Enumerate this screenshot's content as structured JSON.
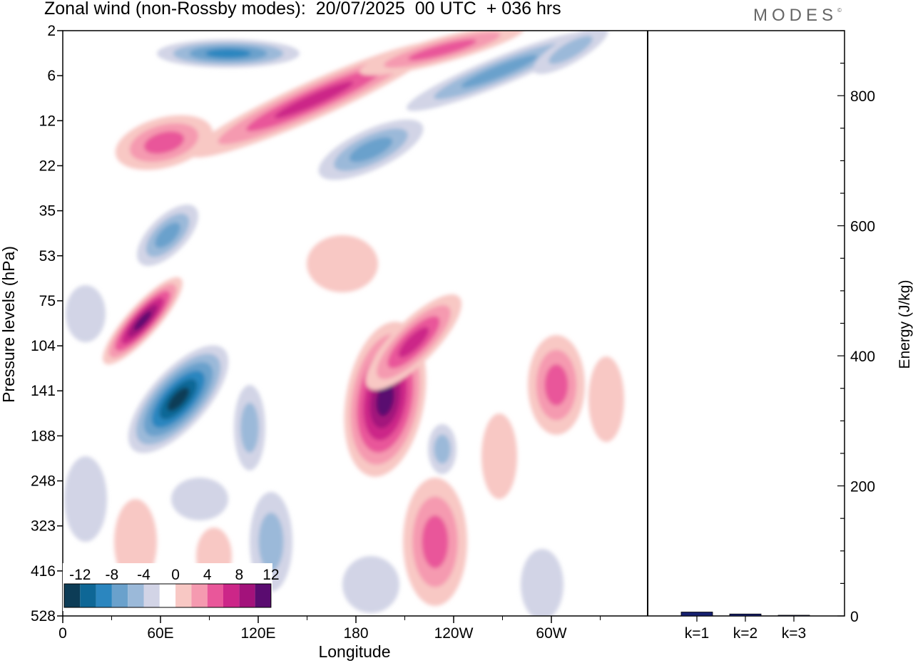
{
  "title": "Zonal wind (non-Rossby modes):  20/07/2025  00 UTC  + 036 hrs",
  "logo": "MODES",
  "logo_mark": "©",
  "colors": {
    "neg": [
      "#0c3c56",
      "#0e6796",
      "#2b86bf",
      "#6aa1cc",
      "#9bb9d9",
      "#d2d4e6"
    ],
    "pos": [
      "#f8c8c4",
      "#f59ab0",
      "#e9579a",
      "#cc2688",
      "#a3127b",
      "#5a0c70"
    ],
    "bar": "#16206e"
  },
  "chart_data": [
    {
      "type": "heatmap",
      "title": "Zonal wind (non-Rossby modes)",
      "xlabel": "Longitude",
      "ylabel": "Pressure levels (hPa)",
      "x_ticks": [
        "0",
        "60E",
        "120E",
        "180",
        "120W",
        "60W"
      ],
      "y_ticks": [
        "2",
        "6",
        "12",
        "22",
        "35",
        "53",
        "75",
        "104",
        "141",
        "188",
        "248",
        "323",
        "416",
        "528"
      ],
      "colorbar": {
        "labels": [
          "-12",
          "-8",
          "-4",
          "0",
          "4",
          "8",
          "12"
        ],
        "levels": [
          -14,
          -12,
          -10,
          -8,
          -6,
          -4,
          -2,
          2,
          4,
          6,
          8,
          10,
          12,
          14
        ]
      }
    },
    {
      "type": "bar",
      "ylabel": "Energy (J/kg)",
      "categories": [
        "k=1",
        "k=2",
        "k=3"
      ],
      "values": [
        6,
        3,
        1
      ],
      "ylim": [
        0,
        900
      ],
      "y_ticks": [
        "0",
        "200",
        "400",
        "600",
        "800"
      ]
    }
  ]
}
